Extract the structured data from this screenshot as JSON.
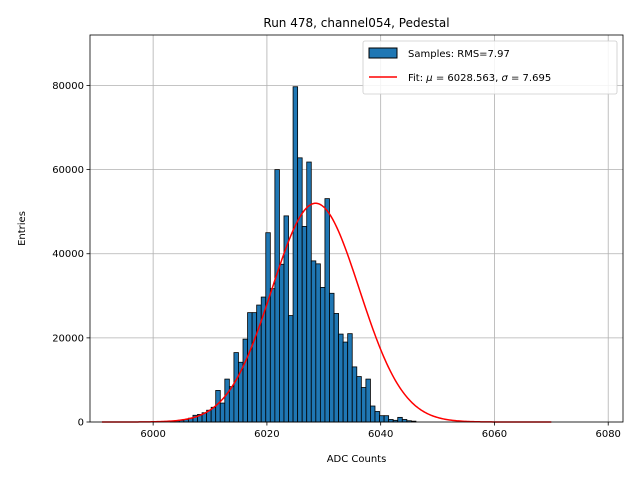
{
  "chart_data": {
    "type": "bar",
    "title": "Run 478, channel054, Pedestal",
    "xlabel": "ADC Counts",
    "ylabel": "Entries",
    "xlim": [
      5988.9,
      6082.6
    ],
    "ylim": [
      0,
      92000
    ],
    "x_ticks": [
      6000,
      6020,
      6040,
      6060,
      6080
    ],
    "y_ticks": [
      0,
      20000,
      40000,
      60000,
      80000
    ],
    "grid": true,
    "legend_position": "top-right",
    "bin_start": 6003,
    "bin_width": 0.8,
    "values": [
      200,
      300,
      400,
      600,
      900,
      1600,
      1800,
      2200,
      2800,
      3500,
      7500,
      4500,
      10200,
      8400,
      16500,
      14200,
      19700,
      26000,
      26000,
      27800,
      29700,
      45000,
      31700,
      60000,
      37500,
      49000,
      25300,
      79700,
      62800,
      46500,
      61800,
      38300,
      37600,
      32000,
      53100,
      30600,
      25800,
      20900,
      19000,
      21000,
      13100,
      10800,
      8200,
      10200,
      3800,
      2500,
      1500,
      1500,
      600,
      400,
      1100,
      600,
      300,
      200
    ],
    "legend": {
      "samples": "Samples: RMS=7.97",
      "fit_prefix": "Fit: ",
      "fit_mu_symbol": "μ",
      "fit_mu_text": " = 6028.563, ",
      "fit_sigma_symbol": "σ",
      "fit_sigma_text": " = 7.695"
    },
    "fit": {
      "mean": 6028.563,
      "sigma": 7.695,
      "amplitude": 52000,
      "x_range": [
        5991,
        6070
      ]
    },
    "colors": {
      "bar_fill": "#1f77b4",
      "bar_edge": "#000000",
      "fit_line": "#ff0000",
      "grid": "#b0b0b0"
    }
  }
}
